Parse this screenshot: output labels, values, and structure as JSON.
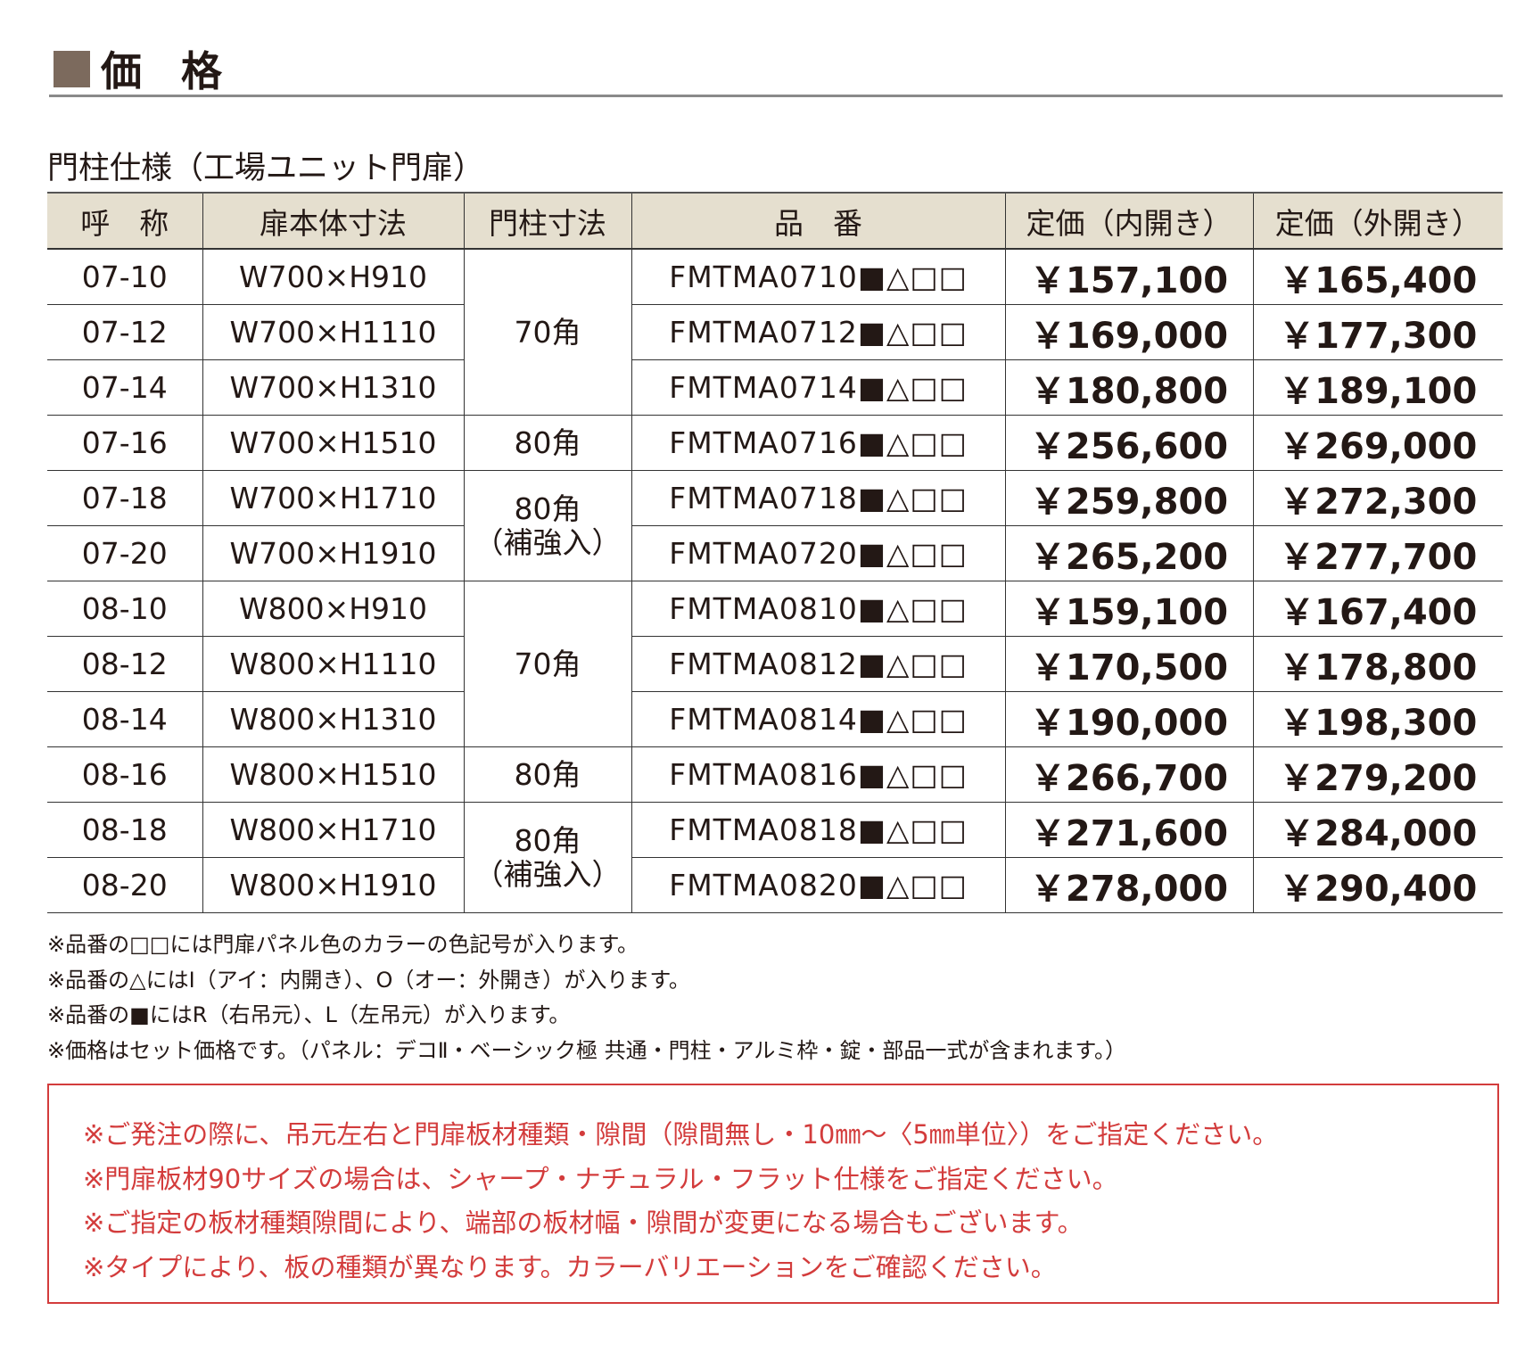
{
  "section_title": "価 格",
  "subtitle": "門柱仕様（工場ユニット門扉）",
  "accent_color": "#7c6a5d",
  "header_bg": "#e5dfcf",
  "alert_color": "#d33c3c",
  "table": {
    "headers": [
      "呼　称",
      "扉本体寸法",
      "門柱寸法",
      "品　番",
      "定価（内開き）",
      "定価（外開き）"
    ],
    "rows": [
      {
        "code": "07-10",
        "size": "W700×H910",
        "post": "70角",
        "pn": "FMTMA0710■△□□",
        "in": "￥157,100",
        "out": "￥165,400"
      },
      {
        "code": "07-12",
        "size": "W700×H1110",
        "post": "70角",
        "pn": "FMTMA0712■△□□",
        "in": "￥169,000",
        "out": "￥177,300"
      },
      {
        "code": "07-14",
        "size": "W700×H1310",
        "post": "70角",
        "pn": "FMTMA0714■△□□",
        "in": "￥180,800",
        "out": "￥189,100"
      },
      {
        "code": "07-16",
        "size": "W700×H1510",
        "post": "80角",
        "pn": "FMTMA0716■△□□",
        "in": "￥256,600",
        "out": "￥269,000"
      },
      {
        "code": "07-18",
        "size": "W700×H1710",
        "post": "80角",
        "pn": "FMTMA0718■△□□",
        "in": "￥259,800",
        "out": "￥272,300"
      },
      {
        "code": "07-20",
        "size": "W700×H1910",
        "post": "80角",
        "pn": "FMTMA0720■△□□",
        "in": "￥265,200",
        "out": "￥277,700"
      },
      {
        "code": "08-10",
        "size": "W800×H910",
        "post": "70角",
        "pn": "FMTMA0810■△□□",
        "in": "￥159,100",
        "out": "￥167,400"
      },
      {
        "code": "08-12",
        "size": "W800×H1110",
        "post": "70角",
        "pn": "FMTMA0812■△□□",
        "in": "￥170,500",
        "out": "￥178,800"
      },
      {
        "code": "08-14",
        "size": "W800×H1310",
        "post": "70角",
        "pn": "FMTMA0814■△□□",
        "in": "￥190,000",
        "out": "￥198,300"
      },
      {
        "code": "08-16",
        "size": "W800×H1510",
        "post": "80角",
        "pn": "FMTMA0816■△□□",
        "in": "￥266,700",
        "out": "￥279,200"
      },
      {
        "code": "08-18",
        "size": "W800×H1710",
        "post": "80角",
        "pn": "FMTMA0818■△□□",
        "in": "￥271,600",
        "out": "￥284,000"
      },
      {
        "code": "08-20",
        "size": "W800×H1910",
        "post": "80角",
        "pn": "FMTMA0820■△□□",
        "in": "￥278,000",
        "out": "￥290,400"
      }
    ],
    "post_groups": [
      "70角",
      "80角",
      "80角",
      "（補強入）",
      "70角",
      "80角",
      "80角",
      "（補強入）"
    ]
  },
  "notes": [
    "※品番の□□には門扉パネル色のカラーの色記号が入ります。",
    "※品番の△にはI（アイ：内開き）、O（オー：外開き）が入ります。",
    "※品番の■にはR（右吊元）、L（左吊元）が入ります。",
    "※価格はセット価格です。（パネル：デコⅡ・ベーシック極 共通・門柱・アルミ枠・錠・部品一式が含まれます。）"
  ],
  "alerts": [
    "※ご発注の際に、吊元左右と門扉板材種類・隙間（隙間無し・10㎜～〈5㎜単位〉）をご指定ください。",
    "※門扉板材90サイズの場合は、シャープ・ナチュラル・フラット仕様をご指定ください。",
    "※ご指定の板材種類隙間により、端部の板材幅・隙間が変更になる場合もございます。",
    "※タイプにより、板の種類が異なります。カラーバリエーションをご確認ください。"
  ]
}
